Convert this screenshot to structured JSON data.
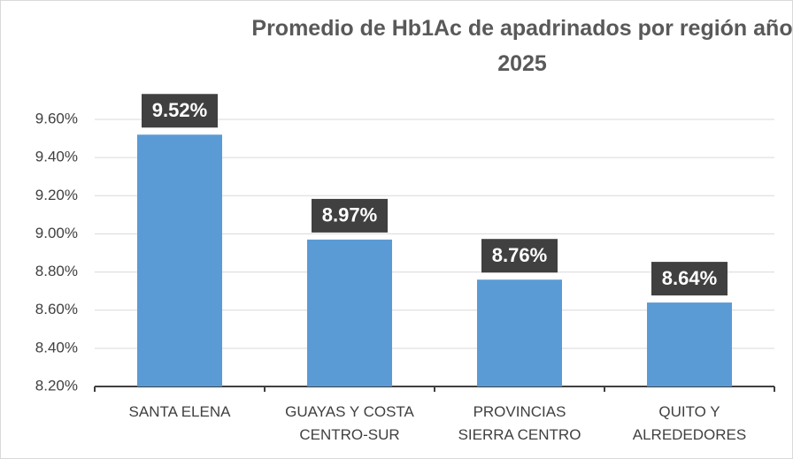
{
  "chart_data": {
    "type": "bar",
    "title": "Promedio de Hb1Ac de apadrinados por región año 2025",
    "categories": [
      "SANTA ELENA",
      "GUAYAS Y COSTA\nCENTRO-SUR",
      "PROVINCIAS\nSIERRA CENTRO",
      "QUITO Y\nALREDEDORES"
    ],
    "values": [
      9.52,
      8.97,
      8.76,
      8.64
    ],
    "value_labels": [
      "9.52%",
      "8.97%",
      "8.76%",
      "8.64%"
    ],
    "color": "#5b9bd5",
    "ylim": [
      8.2,
      9.6
    ],
    "yticks": [
      {
        "value": 8.2,
        "label": "8.20%"
      },
      {
        "value": 8.4,
        "label": "8.40%"
      },
      {
        "value": 8.6,
        "label": "8.60%"
      },
      {
        "value": 8.8,
        "label": "8.80%"
      },
      {
        "value": 9.0,
        "label": "9.00%"
      },
      {
        "value": 9.2,
        "label": "9.20%"
      },
      {
        "value": 9.4,
        "label": "9.40%"
      },
      {
        "value": 9.6,
        "label": "9.60%"
      }
    ],
    "grid": true
  }
}
